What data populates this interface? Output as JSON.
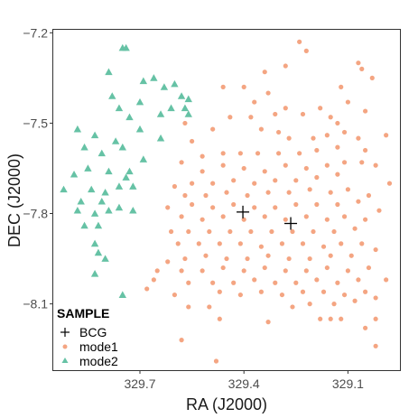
{
  "chart_data": {
    "type": "scatter",
    "title": "",
    "xlabel": "RA (J2000)",
    "ylabel": "DEC (J2000)",
    "x_reversed": true,
    "xlim": [
      329.95,
      128.95
    ],
    "ylim": [
      -8.32,
      -7.19
    ],
    "x_ticks": [
      329.7,
      329.4,
      329.1
    ],
    "x_tick_labels": [
      "329.7",
      "329.4",
      "329.1"
    ],
    "y_ticks": [
      -7.2,
      -7.5,
      -7.8,
      -8.1
    ],
    "y_tick_labels": [
      "-7.2",
      "-7.5",
      "-7.8",
      "-8.1"
    ],
    "grid": false,
    "legend": {
      "title": "SAMPLE",
      "placement": "bottom-left",
      "entries": [
        "BCG",
        "mode1",
        "mode2"
      ]
    },
    "series": [
      {
        "name": "BCG",
        "marker": "cross",
        "color": "#000000",
        "points": [
          [
            329.403,
            -7.795
          ],
          [
            329.265,
            -7.833
          ]
        ]
      },
      {
        "name": "mode1",
        "marker": "circle",
        "color": "#F4A582",
        "points": [
          [
            329.24,
            -7.23
          ],
          [
            329.07,
            -7.3
          ],
          [
            329.06,
            -7.32
          ],
          [
            329.22,
            -7.26
          ],
          [
            329.28,
            -7.31
          ],
          [
            329.34,
            -7.33
          ],
          [
            329.4,
            -7.38
          ],
          [
            329.46,
            -7.38
          ],
          [
            329.33,
            -7.4
          ],
          [
            329.28,
            -7.45
          ],
          [
            329.18,
            -7.45
          ],
          [
            329.1,
            -7.43
          ],
          [
            329.05,
            -7.46
          ],
          [
            329.15,
            -7.48
          ],
          [
            329.23,
            -7.47
          ],
          [
            329.31,
            -7.47
          ],
          [
            329.38,
            -7.48
          ],
          [
            329.44,
            -7.48
          ],
          [
            329.49,
            -7.52
          ],
          [
            329.55,
            -7.56
          ],
          [
            329.57,
            -7.5
          ],
          [
            329.35,
            -7.52
          ],
          [
            329.3,
            -7.53
          ],
          [
            329.27,
            -7.55
          ],
          [
            329.2,
            -7.55
          ],
          [
            329.16,
            -7.54
          ],
          [
            329.11,
            -7.53
          ],
          [
            329.07,
            -7.55
          ],
          [
            328.99,
            -7.54
          ],
          [
            329.13,
            -7.58
          ],
          [
            329.19,
            -7.59
          ],
          [
            329.24,
            -7.6
          ],
          [
            329.3,
            -7.6
          ],
          [
            329.36,
            -7.6
          ],
          [
            329.41,
            -7.6
          ],
          [
            329.46,
            -7.6
          ],
          [
            329.52,
            -7.61
          ],
          [
            329.58,
            -7.63
          ],
          [
            329.52,
            -7.66
          ],
          [
            329.46,
            -7.64
          ],
          [
            329.4,
            -7.65
          ],
          [
            329.34,
            -7.66
          ],
          [
            329.28,
            -7.64
          ],
          [
            329.22,
            -7.65
          ],
          [
            329.16,
            -7.64
          ],
          [
            329.11,
            -7.63
          ],
          [
            329.06,
            -7.63
          ],
          [
            329.02,
            -7.64
          ],
          [
            329.13,
            -7.67
          ],
          [
            329.19,
            -7.68
          ],
          [
            329.25,
            -7.69
          ],
          [
            329.31,
            -7.69
          ],
          [
            329.37,
            -7.7
          ],
          [
            329.43,
            -7.69
          ],
          [
            329.49,
            -7.7
          ],
          [
            329.55,
            -7.7
          ],
          [
            329.6,
            -7.71
          ],
          [
            329.57,
            -7.74
          ],
          [
            329.51,
            -7.74
          ],
          [
            329.45,
            -7.73
          ],
          [
            329.39,
            -7.74
          ],
          [
            329.33,
            -7.73
          ],
          [
            329.27,
            -7.73
          ],
          [
            329.21,
            -7.72
          ],
          [
            329.15,
            -7.73
          ],
          [
            329.1,
            -7.72
          ],
          [
            329.04,
            -7.74
          ],
          [
            328.98,
            -7.7
          ],
          [
            329.07,
            -7.76
          ],
          [
            329.13,
            -7.77
          ],
          [
            329.19,
            -7.77
          ],
          [
            329.25,
            -7.77
          ],
          [
            329.31,
            -7.78
          ],
          [
            329.37,
            -7.78
          ],
          [
            329.43,
            -7.77
          ],
          [
            329.49,
            -7.78
          ],
          [
            329.55,
            -7.77
          ],
          [
            329.62,
            -7.78
          ],
          [
            329.58,
            -7.81
          ],
          [
            329.52,
            -7.82
          ],
          [
            329.46,
            -7.81
          ],
          [
            329.4,
            -7.82
          ],
          [
            329.34,
            -7.81
          ],
          [
            329.28,
            -7.82
          ],
          [
            329.22,
            -7.81
          ],
          [
            329.16,
            -7.82
          ],
          [
            329.11,
            -7.81
          ],
          [
            329.05,
            -7.82
          ],
          [
            329.01,
            -7.79
          ],
          [
            329.08,
            -7.85
          ],
          [
            329.14,
            -7.86
          ],
          [
            329.2,
            -7.86
          ],
          [
            329.26,
            -7.86
          ],
          [
            329.32,
            -7.86
          ],
          [
            329.38,
            -7.86
          ],
          [
            329.44,
            -7.86
          ],
          [
            329.5,
            -7.86
          ],
          [
            329.56,
            -7.86
          ],
          [
            329.61,
            -7.86
          ],
          [
            329.59,
            -7.9
          ],
          [
            329.53,
            -7.9
          ],
          [
            329.47,
            -7.9
          ],
          [
            329.41,
            -7.9
          ],
          [
            329.35,
            -7.91
          ],
          [
            329.29,
            -7.9
          ],
          [
            329.23,
            -7.9
          ],
          [
            329.17,
            -7.91
          ],
          [
            329.12,
            -7.9
          ],
          [
            329.06,
            -7.9
          ],
          [
            329.02,
            -7.92
          ],
          [
            329.09,
            -7.94
          ],
          [
            329.15,
            -7.94
          ],
          [
            329.21,
            -7.95
          ],
          [
            329.27,
            -7.95
          ],
          [
            329.33,
            -7.94
          ],
          [
            329.39,
            -7.95
          ],
          [
            329.45,
            -7.95
          ],
          [
            329.51,
            -7.94
          ],
          [
            329.57,
            -7.95
          ],
          [
            329.62,
            -7.96
          ],
          [
            329.65,
            -7.99
          ],
          [
            329.58,
            -7.99
          ],
          [
            329.52,
            -7.99
          ],
          [
            329.46,
            -7.98
          ],
          [
            329.4,
            -7.99
          ],
          [
            329.34,
            -7.98
          ],
          [
            329.28,
            -7.99
          ],
          [
            329.22,
            -7.99
          ],
          [
            329.16,
            -7.98
          ],
          [
            329.1,
            -7.99
          ],
          [
            329.04,
            -7.98
          ],
          [
            329.66,
            -8.02
          ],
          [
            329.56,
            -8.03
          ],
          [
            329.49,
            -8.03
          ],
          [
            329.43,
            -8.03
          ],
          [
            329.37,
            -8.02
          ],
          [
            329.31,
            -8.03
          ],
          [
            329.25,
            -8.03
          ],
          [
            329.19,
            -8.02
          ],
          [
            329.13,
            -8.03
          ],
          [
            329.07,
            -8.02
          ],
          [
            328.99,
            -8.02
          ],
          [
            329.05,
            -8.06
          ],
          [
            329.11,
            -8.07
          ],
          [
            329.17,
            -8.06
          ],
          [
            329.23,
            -8.06
          ],
          [
            329.29,
            -8.07
          ],
          [
            329.35,
            -8.06
          ],
          [
            329.41,
            -8.07
          ],
          [
            329.47,
            -8.06
          ],
          [
            329.68,
            -8.05
          ],
          [
            329.6,
            -8.07
          ],
          [
            329.02,
            -8.08
          ],
          [
            329.08,
            -8.09
          ],
          [
            329.14,
            -8.1
          ],
          [
            329.21,
            -8.1
          ],
          [
            329.26,
            -8.11
          ],
          [
            329.5,
            -8.11
          ],
          [
            329.56,
            -8.11
          ],
          [
            329.18,
            -8.15
          ],
          [
            329.15,
            -8.15
          ],
          [
            329.12,
            -8.15
          ],
          [
            329.02,
            -8.15
          ],
          [
            329.05,
            -8.18
          ],
          [
            329.33,
            -8.16
          ],
          [
            329.47,
            -8.15
          ],
          [
            329.58,
            -8.22
          ],
          [
            329.02,
            -8.24
          ],
          [
            329.48,
            -8.29
          ],
          [
            329.03,
            -7.35
          ],
          [
            329.12,
            -7.38
          ],
          [
            329.37,
            -7.43
          ],
          [
            329.13,
            -7.5
          ],
          [
            329.05,
            -7.59
          ]
        ]
      },
      {
        "name": "mode2",
        "marker": "triangle",
        "color": "#66C2A5",
        "points": [
          [
            329.75,
            -7.25
          ],
          [
            329.74,
            -7.25
          ],
          [
            329.79,
            -7.33
          ],
          [
            329.69,
            -7.36
          ],
          [
            329.66,
            -7.35
          ],
          [
            329.63,
            -7.38
          ],
          [
            329.6,
            -7.37
          ],
          [
            329.58,
            -7.41
          ],
          [
            329.56,
            -7.42
          ],
          [
            329.57,
            -7.45
          ],
          [
            329.56,
            -7.47
          ],
          [
            329.61,
            -7.45
          ],
          [
            329.64,
            -7.47
          ],
          [
            329.7,
            -7.43
          ],
          [
            329.76,
            -7.45
          ],
          [
            329.78,
            -7.41
          ],
          [
            329.73,
            -7.48
          ],
          [
            329.7,
            -7.52
          ],
          [
            329.64,
            -7.55
          ],
          [
            329.77,
            -7.56
          ],
          [
            329.83,
            -7.54
          ],
          [
            329.88,
            -7.52
          ],
          [
            329.86,
            -7.58
          ],
          [
            329.81,
            -7.6
          ],
          [
            329.75,
            -7.58
          ],
          [
            329.69,
            -7.62
          ],
          [
            329.73,
            -7.66
          ],
          [
            329.79,
            -7.66
          ],
          [
            329.85,
            -7.65
          ],
          [
            329.89,
            -7.67
          ],
          [
            329.74,
            -7.68
          ],
          [
            329.72,
            -7.71
          ],
          [
            329.76,
            -7.71
          ],
          [
            329.8,
            -7.73
          ],
          [
            329.84,
            -7.72
          ],
          [
            329.92,
            -7.72
          ],
          [
            329.87,
            -7.76
          ],
          [
            329.81,
            -7.76
          ],
          [
            329.79,
            -7.79
          ],
          [
            329.76,
            -7.78
          ],
          [
            329.72,
            -7.79
          ],
          [
            329.83,
            -7.8
          ],
          [
            329.88,
            -7.79
          ],
          [
            329.82,
            -7.84
          ],
          [
            329.86,
            -7.84
          ],
          [
            329.83,
            -7.9
          ],
          [
            329.82,
            -7.93
          ],
          [
            329.8,
            -7.95
          ],
          [
            329.83,
            -8.0
          ],
          [
            329.75,
            -8.07
          ]
        ]
      }
    ]
  }
}
